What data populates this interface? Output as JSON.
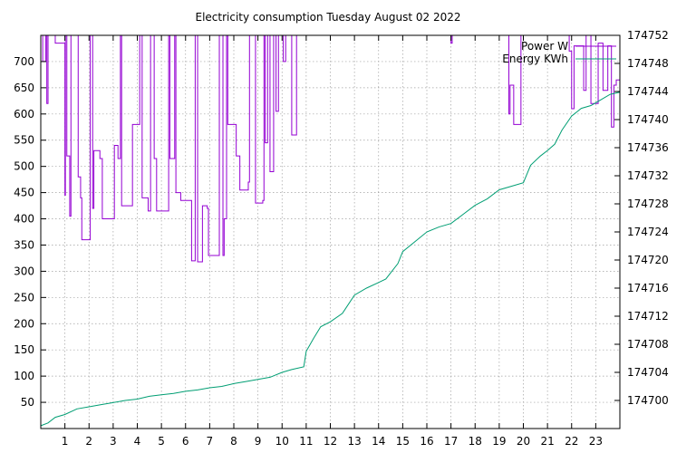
{
  "chart_data": {
    "type": "line",
    "title": "Electricity consumption Tuesday August 02 2022",
    "xlabel": "",
    "ylabel": "",
    "y2label": "",
    "grid": true,
    "legend_position": "top-right",
    "x_ticks": [
      1,
      2,
      3,
      4,
      5,
      6,
      7,
      8,
      9,
      10,
      11,
      12,
      13,
      14,
      15,
      16,
      17,
      18,
      19,
      20,
      21,
      22,
      23
    ],
    "y_ticks": [
      50,
      100,
      150,
      200,
      250,
      300,
      350,
      400,
      450,
      500,
      550,
      600,
      650,
      700
    ],
    "y2_ticks": [
      174700,
      174704,
      174708,
      174712,
      174716,
      174720,
      174724,
      174728,
      174732,
      174736,
      174740,
      174744,
      174748,
      174752
    ],
    "xlim": [
      0,
      24
    ],
    "ylim": [
      0,
      750
    ],
    "y2lim": [
      174696,
      174752
    ],
    "series": [
      {
        "name": "Power W",
        "axis": "y1",
        "color": "#9400d3",
        "step": true,
        "points": [
          [
            0.0,
            750
          ],
          [
            0.08,
            700
          ],
          [
            0.2,
            750
          ],
          [
            0.25,
            620
          ],
          [
            0.3,
            750
          ],
          [
            0.6,
            735
          ],
          [
            0.95,
            735
          ],
          [
            1.0,
            445
          ],
          [
            1.02,
            750
          ],
          [
            1.08,
            520
          ],
          [
            1.2,
            405
          ],
          [
            1.25,
            750
          ],
          [
            1.55,
            480
          ],
          [
            1.65,
            440
          ],
          [
            1.7,
            360
          ],
          [
            2.05,
            750
          ],
          [
            2.15,
            420
          ],
          [
            2.2,
            530
          ],
          [
            2.45,
            515
          ],
          [
            2.55,
            400
          ],
          [
            3.05,
            540
          ],
          [
            3.2,
            515
          ],
          [
            3.3,
            750
          ],
          [
            3.35,
            425
          ],
          [
            3.8,
            580
          ],
          [
            4.1,
            750
          ],
          [
            4.2,
            440
          ],
          [
            4.45,
            415
          ],
          [
            4.55,
            750
          ],
          [
            4.7,
            515
          ],
          [
            4.8,
            415
          ],
          [
            5.3,
            750
          ],
          [
            5.35,
            515
          ],
          [
            5.55,
            750
          ],
          [
            5.6,
            450
          ],
          [
            5.8,
            435
          ],
          [
            6.25,
            320
          ],
          [
            6.4,
            750
          ],
          [
            6.5,
            318
          ],
          [
            6.7,
            425
          ],
          [
            6.9,
            420
          ],
          [
            6.95,
            330
          ],
          [
            7.4,
            750
          ],
          [
            7.55,
            330
          ],
          [
            7.6,
            400
          ],
          [
            7.7,
            750
          ],
          [
            7.75,
            580
          ],
          [
            8.1,
            520
          ],
          [
            8.25,
            455
          ],
          [
            8.6,
            470
          ],
          [
            8.65,
            750
          ],
          [
            8.9,
            430
          ],
          [
            9.2,
            435
          ],
          [
            9.25,
            750
          ],
          [
            9.3,
            545
          ],
          [
            9.4,
            750
          ],
          [
            9.5,
            490
          ],
          [
            9.65,
            750
          ],
          [
            9.75,
            605
          ],
          [
            9.85,
            750
          ],
          [
            10.0,
            750
          ],
          [
            10.05,
            700
          ],
          [
            10.15,
            750
          ],
          [
            10.4,
            560
          ],
          [
            10.6,
            750
          ],
          [
            11.0,
            750
          ],
          [
            17.0,
            735
          ],
          [
            17.05,
            750
          ],
          [
            19.4,
            600
          ],
          [
            19.45,
            655
          ],
          [
            19.6,
            580
          ],
          [
            19.9,
            750
          ],
          [
            20.0,
            750
          ],
          [
            21.9,
            720
          ],
          [
            22.0,
            610
          ],
          [
            22.1,
            730
          ],
          [
            22.5,
            645
          ],
          [
            22.6,
            750
          ],
          [
            22.8,
            620
          ],
          [
            23.1,
            735
          ],
          [
            23.3,
            645
          ],
          [
            23.5,
            730
          ],
          [
            23.65,
            575
          ],
          [
            23.75,
            655
          ],
          [
            23.85,
            665
          ],
          [
            24.0,
            750
          ]
        ]
      },
      {
        "name": "Energy KWh",
        "axis": "y2",
        "color": "#009e73",
        "step": false,
        "points": [
          [
            0.0,
            174696.4
          ],
          [
            0.3,
            174696.8
          ],
          [
            0.6,
            174697.6
          ],
          [
            1.0,
            174698.0
          ],
          [
            1.5,
            174698.8
          ],
          [
            2.0,
            174699.1
          ],
          [
            2.5,
            174699.4
          ],
          [
            3.0,
            174699.7
          ],
          [
            3.5,
            174700.0
          ],
          [
            4.0,
            174700.2
          ],
          [
            4.5,
            174700.6
          ],
          [
            5.0,
            174700.8
          ],
          [
            5.5,
            174701.0
          ],
          [
            6.0,
            174701.3
          ],
          [
            6.5,
            174701.5
          ],
          [
            7.0,
            174701.8
          ],
          [
            7.5,
            174702.0
          ],
          [
            8.0,
            174702.4
          ],
          [
            8.5,
            174702.7
          ],
          [
            9.0,
            174703.0
          ],
          [
            9.5,
            174703.3
          ],
          [
            10.0,
            174704.0
          ],
          [
            10.4,
            174704.4
          ],
          [
            10.9,
            174704.8
          ],
          [
            11.0,
            174707.0
          ],
          [
            11.3,
            174708.8
          ],
          [
            11.6,
            174710.5
          ],
          [
            12.0,
            174711.2
          ],
          [
            12.5,
            174712.4
          ],
          [
            13.0,
            174715.0
          ],
          [
            13.5,
            174716.0
          ],
          [
            14.0,
            174716.8
          ],
          [
            14.3,
            174717.3
          ],
          [
            14.8,
            174719.5
          ],
          [
            15.0,
            174721.2
          ],
          [
            15.5,
            174722.6
          ],
          [
            16.0,
            174724.0
          ],
          [
            16.5,
            174724.7
          ],
          [
            17.0,
            174725.2
          ],
          [
            17.5,
            174726.5
          ],
          [
            18.0,
            174727.8
          ],
          [
            18.5,
            174728.7
          ],
          [
            19.0,
            174730.0
          ],
          [
            19.5,
            174730.5
          ],
          [
            20.0,
            174731.0
          ],
          [
            20.3,
            174733.5
          ],
          [
            20.7,
            174734.8
          ],
          [
            21.0,
            174735.6
          ],
          [
            21.3,
            174736.5
          ],
          [
            21.6,
            174738.5
          ],
          [
            22.0,
            174740.5
          ],
          [
            22.4,
            174741.6
          ],
          [
            22.8,
            174742.0
          ],
          [
            23.2,
            174742.8
          ],
          [
            23.6,
            174743.6
          ],
          [
            24.0,
            174743.9
          ]
        ]
      }
    ]
  }
}
